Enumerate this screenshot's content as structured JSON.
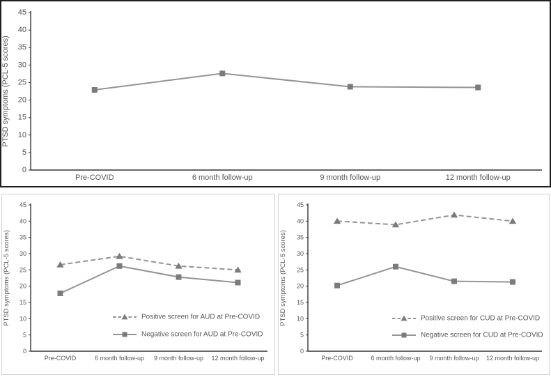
{
  "colors": {
    "background": "#ffffff",
    "top_panel_border": "#1f1f1f",
    "sub_panel_border": "#d3d3d3",
    "axis": "#333333",
    "label_text": "#555555",
    "line": "#949494",
    "marker_fill": "#7b7b7b"
  },
  "chart_data": [
    {
      "type": "line",
      "panel": "full-sample",
      "title": "",
      "xlabel": "",
      "ylabel": "PTSD symptoms (PCL-5 scores)",
      "categories": [
        "Pre-COVID",
        "6 month follow-up",
        "9 month follow-up",
        "12 month follow-up"
      ],
      "ylim": [
        0,
        45
      ],
      "ytick_step": 5,
      "yticks": [
        0,
        5,
        10,
        15,
        20,
        25,
        30,
        35,
        40,
        45
      ],
      "grid": false,
      "legend": false,
      "series": [
        {
          "name": "",
          "values": [
            22.9,
            27.6,
            23.8,
            23.6
          ],
          "marker": "square",
          "line_style": "solid"
        }
      ]
    },
    {
      "type": "line",
      "panel": "aud",
      "title": "",
      "xlabel": "",
      "ylabel": "PTSD symptoms (PCL-5 scores)",
      "categories": [
        "Pre-COVID",
        "6 month follow-up",
        "9 month follow-up",
        "12 month follow-up"
      ],
      "ylim": [
        0,
        45
      ],
      "ytick_step": 5,
      "yticks": [
        0,
        5,
        10,
        15,
        20,
        25,
        30,
        35,
        40,
        45
      ],
      "grid": false,
      "legend": true,
      "legend_position": "inside-bottom-right",
      "series": [
        {
          "name": "Positive screen for AUD at Pre-COVID",
          "values": [
            26.6,
            29.2,
            26.2,
            25.0
          ],
          "marker": "triangle",
          "line_style": "dashed"
        },
        {
          "name": "Negative screen for AUD at Pre-COVID",
          "values": [
            17.8,
            26.2,
            22.8,
            21.1
          ],
          "marker": "square",
          "line_style": "solid"
        }
      ]
    },
    {
      "type": "line",
      "panel": "cud",
      "title": "",
      "xlabel": "",
      "ylabel": "PTSD symptoms (PCL-5 scores)",
      "categories": [
        "Pre-COVID",
        "6 month follow-up",
        "9 month follow-up",
        "12 month follow-up"
      ],
      "ylim": [
        0,
        45
      ],
      "ytick_step": 5,
      "yticks": [
        0,
        5,
        10,
        15,
        20,
        25,
        30,
        35,
        40,
        45
      ],
      "grid": false,
      "legend": true,
      "legend_position": "inside-bottom-right",
      "series": [
        {
          "name": "Positive screen for CUD at Pre-COVID",
          "values": [
            40.0,
            38.9,
            41.9,
            40.0
          ],
          "marker": "triangle",
          "line_style": "dashed"
        },
        {
          "name": "Negative screen for CUD at Pre-COVID",
          "values": [
            20.2,
            26.0,
            21.5,
            21.3
          ],
          "marker": "square",
          "line_style": "solid"
        }
      ]
    }
  ]
}
